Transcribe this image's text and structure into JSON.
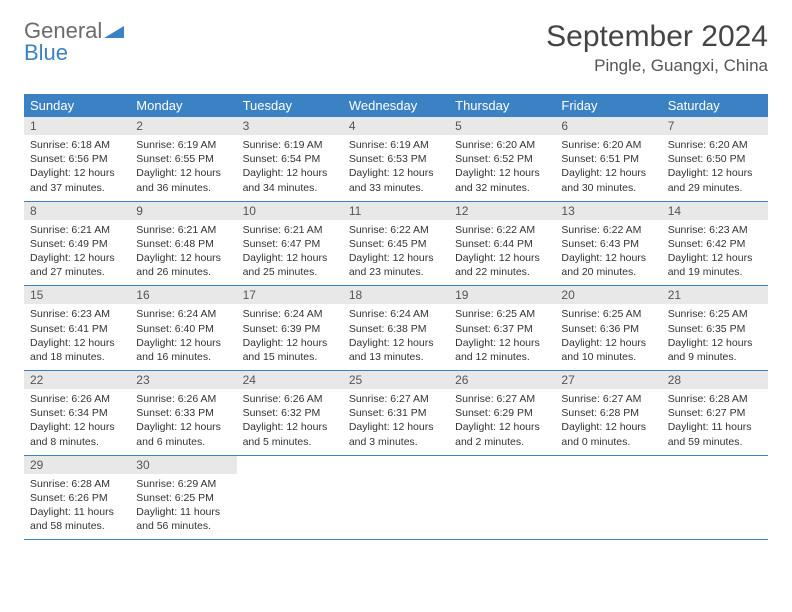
{
  "logo": {
    "word1": "General",
    "word2": "Blue"
  },
  "title": "September 2024",
  "location": "Pingle, Guangxi, China",
  "colors": {
    "header_bg": "#3b82c4",
    "header_text": "#ffffff",
    "daynum_bg": "#e8e8e8",
    "border": "#3b82c4",
    "logo_gray": "#6b6b6b",
    "logo_blue": "#3b82c4"
  },
  "day_headers": [
    "Sunday",
    "Monday",
    "Tuesday",
    "Wednesday",
    "Thursday",
    "Friday",
    "Saturday"
  ],
  "weeks": [
    [
      {
        "n": "1",
        "sr": "Sunrise: 6:18 AM",
        "ss": "Sunset: 6:56 PM",
        "dl": "Daylight: 12 hours and 37 minutes."
      },
      {
        "n": "2",
        "sr": "Sunrise: 6:19 AM",
        "ss": "Sunset: 6:55 PM",
        "dl": "Daylight: 12 hours and 36 minutes."
      },
      {
        "n": "3",
        "sr": "Sunrise: 6:19 AM",
        "ss": "Sunset: 6:54 PM",
        "dl": "Daylight: 12 hours and 34 minutes."
      },
      {
        "n": "4",
        "sr": "Sunrise: 6:19 AM",
        "ss": "Sunset: 6:53 PM",
        "dl": "Daylight: 12 hours and 33 minutes."
      },
      {
        "n": "5",
        "sr": "Sunrise: 6:20 AM",
        "ss": "Sunset: 6:52 PM",
        "dl": "Daylight: 12 hours and 32 minutes."
      },
      {
        "n": "6",
        "sr": "Sunrise: 6:20 AM",
        "ss": "Sunset: 6:51 PM",
        "dl": "Daylight: 12 hours and 30 minutes."
      },
      {
        "n": "7",
        "sr": "Sunrise: 6:20 AM",
        "ss": "Sunset: 6:50 PM",
        "dl": "Daylight: 12 hours and 29 minutes."
      }
    ],
    [
      {
        "n": "8",
        "sr": "Sunrise: 6:21 AM",
        "ss": "Sunset: 6:49 PM",
        "dl": "Daylight: 12 hours and 27 minutes."
      },
      {
        "n": "9",
        "sr": "Sunrise: 6:21 AM",
        "ss": "Sunset: 6:48 PM",
        "dl": "Daylight: 12 hours and 26 minutes."
      },
      {
        "n": "10",
        "sr": "Sunrise: 6:21 AM",
        "ss": "Sunset: 6:47 PM",
        "dl": "Daylight: 12 hours and 25 minutes."
      },
      {
        "n": "11",
        "sr": "Sunrise: 6:22 AM",
        "ss": "Sunset: 6:45 PM",
        "dl": "Daylight: 12 hours and 23 minutes."
      },
      {
        "n": "12",
        "sr": "Sunrise: 6:22 AM",
        "ss": "Sunset: 6:44 PM",
        "dl": "Daylight: 12 hours and 22 minutes."
      },
      {
        "n": "13",
        "sr": "Sunrise: 6:22 AM",
        "ss": "Sunset: 6:43 PM",
        "dl": "Daylight: 12 hours and 20 minutes."
      },
      {
        "n": "14",
        "sr": "Sunrise: 6:23 AM",
        "ss": "Sunset: 6:42 PM",
        "dl": "Daylight: 12 hours and 19 minutes."
      }
    ],
    [
      {
        "n": "15",
        "sr": "Sunrise: 6:23 AM",
        "ss": "Sunset: 6:41 PM",
        "dl": "Daylight: 12 hours and 18 minutes."
      },
      {
        "n": "16",
        "sr": "Sunrise: 6:24 AM",
        "ss": "Sunset: 6:40 PM",
        "dl": "Daylight: 12 hours and 16 minutes."
      },
      {
        "n": "17",
        "sr": "Sunrise: 6:24 AM",
        "ss": "Sunset: 6:39 PM",
        "dl": "Daylight: 12 hours and 15 minutes."
      },
      {
        "n": "18",
        "sr": "Sunrise: 6:24 AM",
        "ss": "Sunset: 6:38 PM",
        "dl": "Daylight: 12 hours and 13 minutes."
      },
      {
        "n": "19",
        "sr": "Sunrise: 6:25 AM",
        "ss": "Sunset: 6:37 PM",
        "dl": "Daylight: 12 hours and 12 minutes."
      },
      {
        "n": "20",
        "sr": "Sunrise: 6:25 AM",
        "ss": "Sunset: 6:36 PM",
        "dl": "Daylight: 12 hours and 10 minutes."
      },
      {
        "n": "21",
        "sr": "Sunrise: 6:25 AM",
        "ss": "Sunset: 6:35 PM",
        "dl": "Daylight: 12 hours and 9 minutes."
      }
    ],
    [
      {
        "n": "22",
        "sr": "Sunrise: 6:26 AM",
        "ss": "Sunset: 6:34 PM",
        "dl": "Daylight: 12 hours and 8 minutes."
      },
      {
        "n": "23",
        "sr": "Sunrise: 6:26 AM",
        "ss": "Sunset: 6:33 PM",
        "dl": "Daylight: 12 hours and 6 minutes."
      },
      {
        "n": "24",
        "sr": "Sunrise: 6:26 AM",
        "ss": "Sunset: 6:32 PM",
        "dl": "Daylight: 12 hours and 5 minutes."
      },
      {
        "n": "25",
        "sr": "Sunrise: 6:27 AM",
        "ss": "Sunset: 6:31 PM",
        "dl": "Daylight: 12 hours and 3 minutes."
      },
      {
        "n": "26",
        "sr": "Sunrise: 6:27 AM",
        "ss": "Sunset: 6:29 PM",
        "dl": "Daylight: 12 hours and 2 minutes."
      },
      {
        "n": "27",
        "sr": "Sunrise: 6:27 AM",
        "ss": "Sunset: 6:28 PM",
        "dl": "Daylight: 12 hours and 0 minutes."
      },
      {
        "n": "28",
        "sr": "Sunrise: 6:28 AM",
        "ss": "Sunset: 6:27 PM",
        "dl": "Daylight: 11 hours and 59 minutes."
      }
    ],
    [
      {
        "n": "29",
        "sr": "Sunrise: 6:28 AM",
        "ss": "Sunset: 6:26 PM",
        "dl": "Daylight: 11 hours and 58 minutes."
      },
      {
        "n": "30",
        "sr": "Sunrise: 6:29 AM",
        "ss": "Sunset: 6:25 PM",
        "dl": "Daylight: 11 hours and 56 minutes."
      },
      {
        "empty": true
      },
      {
        "empty": true
      },
      {
        "empty": true
      },
      {
        "empty": true
      },
      {
        "empty": true
      }
    ]
  ]
}
